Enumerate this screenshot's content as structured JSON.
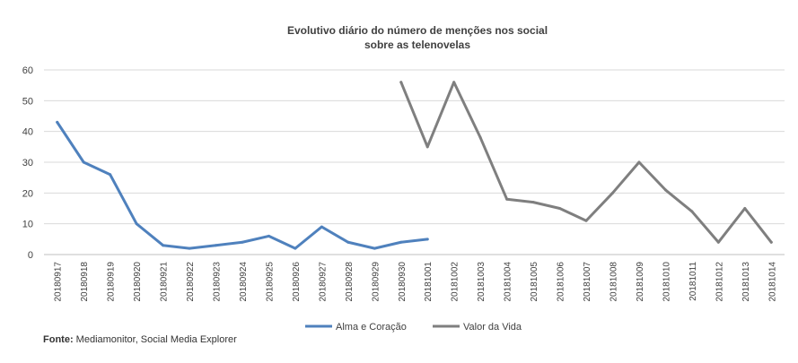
{
  "chart_data": {
    "type": "line",
    "title_lines": [
      "Evolutivo  diário do número de menções nos social",
      "sobre as telenovelas"
    ],
    "categories": [
      "20180917",
      "20180918",
      "20180919",
      "20180920",
      "20180921",
      "20180922",
      "20180923",
      "20180924",
      "20180925",
      "20180926",
      "20180927",
      "20180928",
      "20180929",
      "20180930",
      "20181001",
      "20181002",
      "20181003",
      "20181004",
      "20181005",
      "20181006",
      "20181007",
      "20181008",
      "20181009",
      "20181010",
      "20181011",
      "20181012",
      "20181013",
      "20181014"
    ],
    "series": [
      {
        "name": "Alma e Coração",
        "color": "#4f81bd",
        "values": [
          43,
          30,
          26,
          10,
          3,
          2,
          3,
          4,
          6,
          2,
          9,
          4,
          2,
          4,
          5,
          null,
          null,
          null,
          null,
          null,
          null,
          null,
          null,
          null,
          null,
          null,
          null,
          null
        ]
      },
      {
        "name": "Valor da Vida",
        "color": "#7f7f7f",
        "values": [
          null,
          null,
          null,
          null,
          null,
          null,
          null,
          null,
          null,
          null,
          null,
          null,
          null,
          56,
          35,
          56,
          38,
          18,
          17,
          15,
          11,
          20,
          30,
          21,
          14,
          4,
          15,
          4
        ]
      }
    ],
    "ylim": [
      0,
      60
    ],
    "yticks": [
      0,
      10,
      20,
      30,
      40,
      50,
      60
    ],
    "grid": true,
    "legend_position": "bottom"
  },
  "source": {
    "label": "Fonte:",
    "text": " Mediamonitor, Social Media Explorer"
  }
}
